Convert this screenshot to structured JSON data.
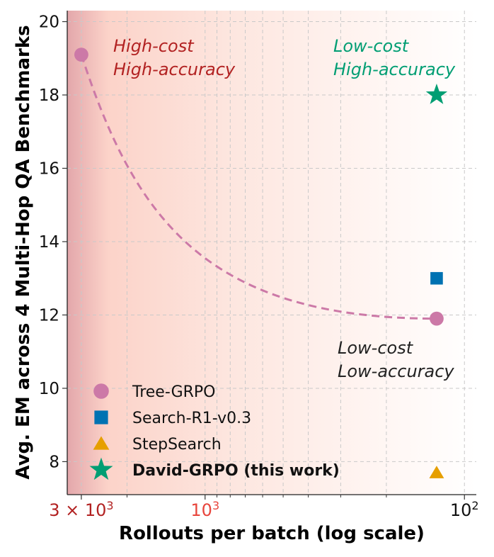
{
  "chart_data": {
    "type": "scatter",
    "xscale": "log",
    "x_direction": "reversed",
    "xlim": [
      3400,
      90
    ],
    "ylim": [
      7.1,
      20.3
    ],
    "xlabel": "Rollouts per batch (log scale)",
    "ylabel": "Avg. EM across 4 Multi-Hop QA Benchmarks",
    "grid": true,
    "legend_position": "bottom-left",
    "xticks": [
      {
        "value": 3000,
        "label": "3 × 10",
        "exp": "3",
        "color": "#b22222"
      },
      {
        "value": 1000,
        "label": "10",
        "exp": "3",
        "color": "#e8453c"
      },
      {
        "value": 100,
        "label": "10",
        "exp": "2",
        "color": "#111111"
      }
    ],
    "yticks": [
      8,
      10,
      12,
      14,
      16,
      18,
      20
    ],
    "series": [
      {
        "name": "Tree-GRPO",
        "marker": "circle",
        "color": "#cc79a7",
        "bold": false,
        "points": [
          {
            "x": 3000,
            "y": 19.1
          },
          {
            "x": 128,
            "y": 11.9
          }
        ]
      },
      {
        "name": "Search-R1-v0.3",
        "marker": "square",
        "color": "#0072b2",
        "bold": false,
        "points": [
          {
            "x": 128,
            "y": 13.0
          }
        ]
      },
      {
        "name": "StepSearch",
        "marker": "triangle",
        "color": "#e69f00",
        "bold": false,
        "points": [
          {
            "x": 128,
            "y": 7.7
          }
        ]
      },
      {
        "name": "David-GRPO (this work)",
        "marker": "star",
        "color": "#009e73",
        "bold": true,
        "points": [
          {
            "x": 128,
            "y": 18.0
          }
        ]
      }
    ],
    "trend_curve": {
      "color": "#cc79a7",
      "style": "dashed",
      "from": {
        "x": 3000,
        "y": 19.1
      },
      "to": {
        "x": 128,
        "y": 11.9
      }
    },
    "annotations": [
      {
        "lines": [
          "High-cost",
          "High-accuracy"
        ],
        "color": "#b22222",
        "anchor": "top-left"
      },
      {
        "lines": [
          "Low-cost",
          "High-accuracy"
        ],
        "color": "#009e73",
        "anchor": "top-right"
      },
      {
        "lines": [
          "Low-cost",
          "Low-accuracy"
        ],
        "color": "#222222",
        "anchor": "lower-right"
      }
    ]
  }
}
